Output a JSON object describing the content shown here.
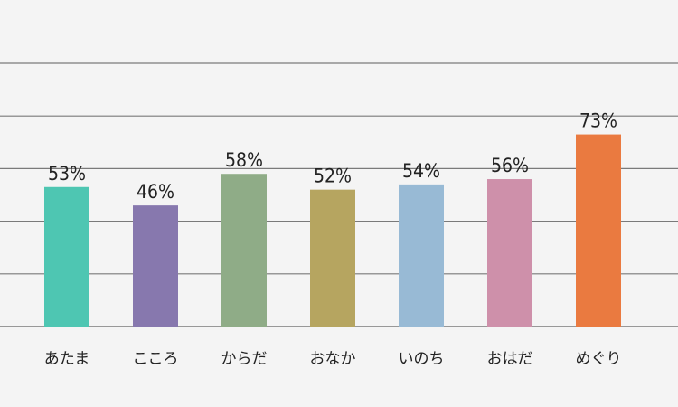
{
  "chart_data": {
    "type": "bar",
    "categories": [
      "あたま",
      "こころ",
      "からだ",
      "おなか",
      "いのち",
      "おはだ",
      "めぐり"
    ],
    "values": [
      53,
      46,
      58,
      52,
      54,
      56,
      73
    ],
    "value_labels": [
      "53%",
      "46%",
      "58%",
      "52%",
      "54%",
      "56%",
      "73%"
    ],
    "ylim": [
      0,
      100
    ],
    "y_gridlines": [
      0,
      20,
      40,
      60,
      80,
      100
    ],
    "grid": true,
    "bar_colors": [
      "#4ec6b2",
      "#8778ae",
      "#8fac87",
      "#b6a560",
      "#98bad5",
      "#ce90aa",
      "#ea7a40"
    ],
    "gridline_color": "#7a7a7a",
    "background": "#f4f4f4"
  }
}
